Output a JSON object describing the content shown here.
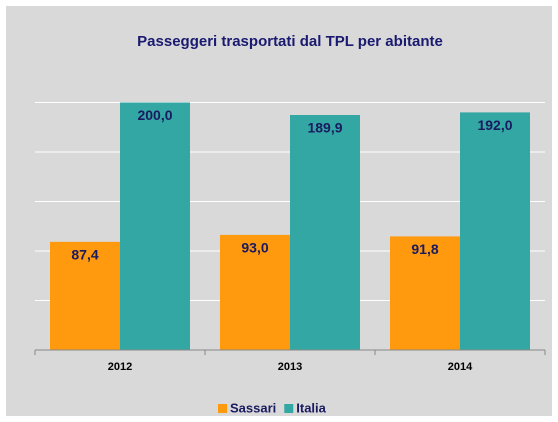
{
  "chart_data": {
    "type": "bar",
    "title": "Passeggeri trasportati dal TPL per abitante",
    "categories": [
      "2012",
      "2013",
      "2014"
    ],
    "series": [
      {
        "name": "Sassari",
        "color": "#ff9a0e",
        "values": [
          87.4,
          93.0,
          91.8
        ],
        "value_labels": [
          "87,4",
          "93,0",
          "91,8"
        ]
      },
      {
        "name": "Italia",
        "color": "#33a7a3",
        "values": [
          200.0,
          189.9,
          192.0
        ],
        "value_labels": [
          "200,0",
          "189,9",
          "192,0"
        ]
      }
    ],
    "ylim": [
      0,
      240
    ],
    "yticks": [
      0,
      40,
      80,
      120,
      160,
      200
    ],
    "grid": true,
    "legend": "bottom"
  }
}
